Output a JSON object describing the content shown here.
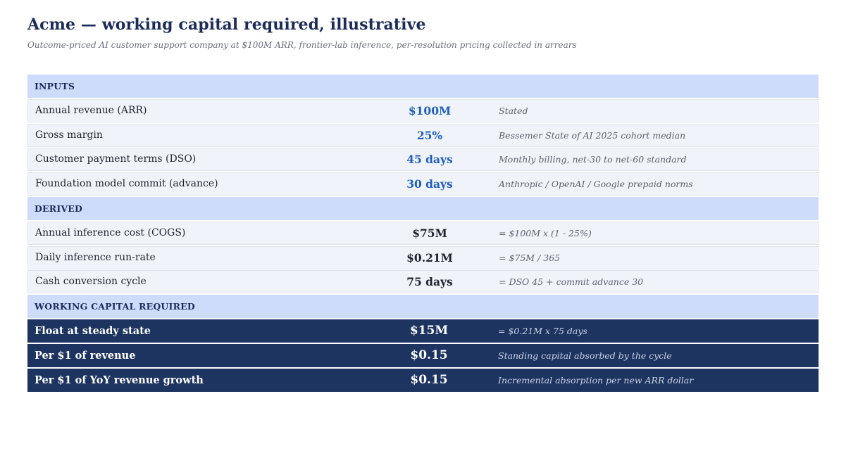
{
  "header": {
    "title": "Acme — working capital required, illustrative",
    "subtitle": "Outcome-priced AI customer support company at $100M ARR, frontier-lab inference, per-resolution pricing collected in arrears"
  },
  "sections": {
    "inputs": {
      "heading": "INPUTS",
      "rows": [
        {
          "label": "Annual revenue (ARR)",
          "value": "$100M",
          "note": "Stated"
        },
        {
          "label": "Gross margin",
          "value": "25%",
          "note": "Bessemer State of AI 2025 cohort median"
        },
        {
          "label": "Customer payment terms (DSO)",
          "value": "45 days",
          "note": "Monthly billing, net-30 to net-60 standard"
        },
        {
          "label": "Foundation model commit (advance)",
          "value": "30 days",
          "note": "Anthropic / OpenAI / Google prepaid norms"
        }
      ]
    },
    "derived": {
      "heading": "DERIVED",
      "rows": [
        {
          "label": "Annual inference cost (COGS)",
          "value": "$75M",
          "note": "= $100M x (1 - 25%)"
        },
        {
          "label": "Daily inference run-rate",
          "value": "$0.21M",
          "note": "= $75M / 365"
        },
        {
          "label": "Cash conversion cycle",
          "value": "75 days",
          "note": "= DSO 45 + commit advance 30"
        }
      ]
    },
    "working_capital": {
      "heading": "WORKING CAPITAL REQUIRED",
      "rows": [
        {
          "label": "Float at steady state",
          "value": "$15M",
          "note": "= $0.21M x 75 days"
        },
        {
          "label": "Per $1 of revenue",
          "value": "$0.15",
          "note": "Standing capital absorbed by the cycle"
        },
        {
          "label": "Per $1 of YoY revenue growth",
          "value": "$0.15",
          "note": "Incremental absorption per new ARR dollar"
        }
      ]
    }
  },
  "colors": {
    "title": "#1b2c5a",
    "section_band": "#cddcfb",
    "input_value": "#1f5fbf",
    "total_band": "#1d3461"
  }
}
